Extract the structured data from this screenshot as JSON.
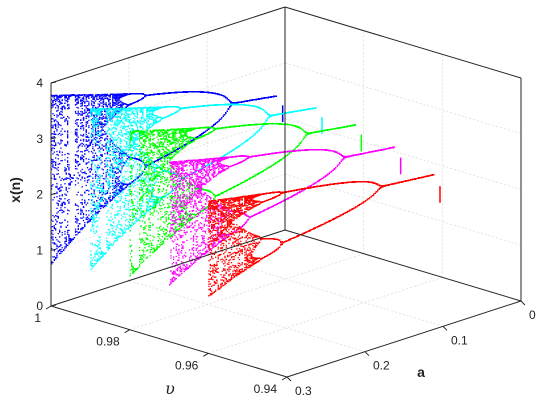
{
  "chart_data": {
    "type": "scatter",
    "title": "",
    "zlabel": "x(n)",
    "xlabel": "a",
    "ylabel": "υ",
    "zlim": [
      0,
      4
    ],
    "xlim": [
      0,
      0.3
    ],
    "ylim": [
      0.94,
      1
    ],
    "z_ticks": [
      "0",
      "1",
      "2",
      "3",
      "4"
    ],
    "a_ticks": [
      "0",
      "0.1",
      "0.2",
      "0.3"
    ],
    "v_ticks": [
      "1",
      "0.98",
      "0.96",
      "0.94"
    ],
    "grid": true,
    "view": "3d",
    "series": [
      {
        "color": "#0000ff",
        "upsilon": 1.0,
        "a_range": [
          0.3,
          0.0
        ],
        "end_value": 2.0
      },
      {
        "color": "#00ffff",
        "upsilon": 0.99,
        "a_range": [
          0.3,
          0.0
        ],
        "end_value": 2.0
      },
      {
        "color": "#00ff00",
        "upsilon": 0.98,
        "a_range": [
          0.3,
          0.0
        ],
        "end_value": 1.9
      },
      {
        "color": "#ff00ff",
        "upsilon": 0.97,
        "a_range": [
          0.3,
          0.0
        ],
        "end_value": 1.7
      },
      {
        "color": "#ff0000",
        "upsilon": 0.96,
        "a_range": [
          0.3,
          0.0
        ],
        "end_value": 1.4
      }
    ]
  }
}
